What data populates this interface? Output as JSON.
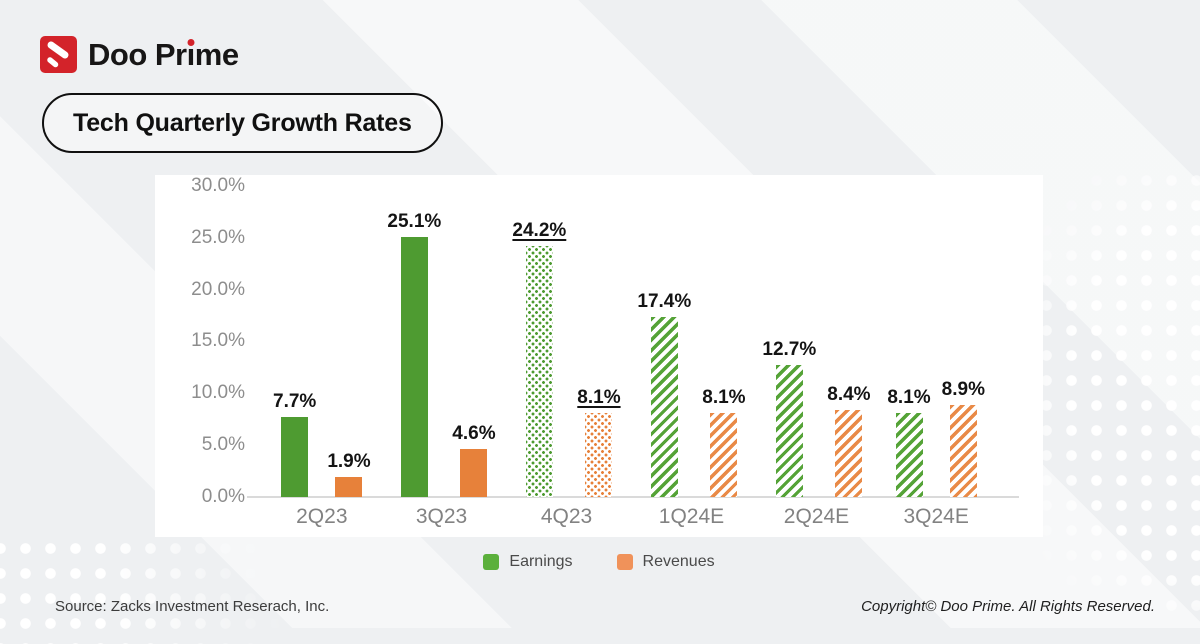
{
  "brand": {
    "name": "Doo Prime",
    "pre": "Doo Pr",
    "dotless_i": "ı",
    "post": "me"
  },
  "title": "Tech Quarterly Growth Rates",
  "chart_data": {
    "type": "bar",
    "title": "Tech Quarterly Growth Rates",
    "categories": [
      "2Q23",
      "3Q23",
      "4Q23",
      "1Q24E",
      "2Q24E",
      "3Q24E"
    ],
    "series": [
      {
        "name": "Earnings",
        "color": "#4e9b31",
        "values": [
          7.7,
          25.1,
          24.2,
          17.4,
          12.7,
          8.1
        ],
        "labels": [
          "7.7%",
          "25.1%",
          "24.2%",
          "17.4%",
          "12.7%",
          "8.1%"
        ]
      },
      {
        "name": "Revenues",
        "color": "#e7813a",
        "values": [
          1.9,
          4.6,
          8.1,
          8.1,
          8.4,
          8.9
        ],
        "labels": [
          "1.9%",
          "4.6%",
          "8.1%",
          "8.1%",
          "8.4%",
          "8.9%"
        ]
      }
    ],
    "bar_styles": [
      "solid",
      "solid",
      "dots",
      "stripes",
      "stripes",
      "stripes"
    ],
    "underline_labels": [
      false,
      false,
      true,
      false,
      false,
      false
    ],
    "xlabel": "",
    "ylabel": "",
    "ylim": [
      0,
      30
    ],
    "yticks": [
      "30.0%",
      "25.0%",
      "20.0%",
      "15.0%",
      "10.0%",
      "5.0%",
      "0.0%"
    ],
    "grid": false,
    "legend_position": "bottom"
  },
  "legend": {
    "items": [
      {
        "label": "Earnings",
        "color": "#5bb03c"
      },
      {
        "label": "Revenues",
        "color": "#f0925a"
      }
    ]
  },
  "footer": {
    "source": "Source: Zacks Investment Reserach, Inc.",
    "copyright": "Copyright© Doo Prime. All Rights Reserved."
  }
}
